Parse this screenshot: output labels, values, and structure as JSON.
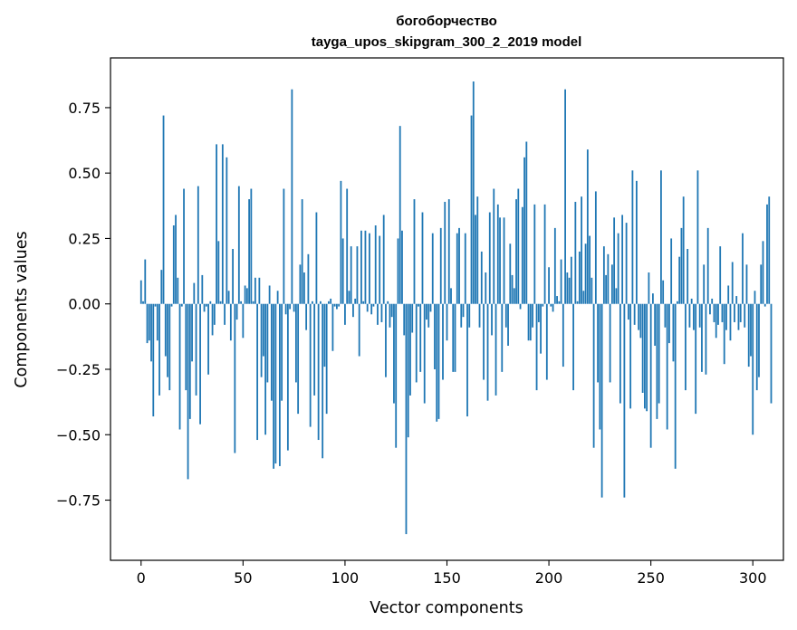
{
  "chart_data": {
    "type": "bar",
    "title_line1": "богоборчество",
    "title_line2": "tayga_upos_skipgram_300_2_2019 model",
    "xlabel": "Vector components",
    "ylabel": "Components values",
    "xlim": [
      -15,
      315
    ],
    "ylim": [
      -0.98,
      0.94
    ],
    "xticks": [
      0,
      50,
      100,
      150,
      200,
      250,
      300
    ],
    "xtick_labels": [
      "0",
      "50",
      "100",
      "150",
      "200",
      "250",
      "300"
    ],
    "yticks": [
      -0.75,
      -0.5,
      -0.25,
      0.0,
      0.25,
      0.5,
      0.75
    ],
    "ytick_labels": [
      "−0.75",
      "−0.50",
      "−0.25",
      "0.00",
      "0.25",
      "0.50",
      "0.75"
    ],
    "bar_color": "#1f77b4",
    "grid": false,
    "values": [
      0.09,
      0.01,
      0.17,
      -0.15,
      -0.14,
      -0.22,
      -0.43,
      -0.01,
      -0.14,
      -0.35,
      0.13,
      0.72,
      -0.2,
      -0.28,
      -0.33,
      -0.01,
      0.3,
      0.34,
      0.1,
      -0.48,
      -0.01,
      0.44,
      -0.33,
      -0.67,
      -0.44,
      -0.22,
      0.08,
      -0.35,
      0.45,
      -0.46,
      0.11,
      -0.03,
      -0.01,
      -0.27,
      0.01,
      -0.12,
      -0.08,
      0.61,
      0.24,
      0.01,
      0.61,
      -0.08,
      0.56,
      0.05,
      -0.14,
      0.21,
      -0.57,
      -0.06,
      0.45,
      0.01,
      -0.13,
      0.07,
      0.06,
      0.4,
      0.44,
      0.01,
      0.1,
      -0.52,
      0.1,
      -0.28,
      -0.2,
      -0.5,
      -0.3,
      0.07,
      -0.37,
      -0.63,
      -0.61,
      0.05,
      -0.62,
      -0.37,
      0.44,
      -0.04,
      -0.56,
      -0.02,
      0.82,
      -0.03,
      -0.3,
      -0.42,
      0.15,
      0.4,
      0.12,
      -0.1,
      0.19,
      -0.47,
      0.01,
      -0.35,
      0.35,
      -0.52,
      0.01,
      -0.59,
      -0.24,
      -0.42,
      0.01,
      0.02,
      -0.18,
      -0.01,
      -0.02,
      -0.01,
      0.47,
      0.25,
      -0.08,
      0.44,
      0.05,
      0.22,
      -0.05,
      0.02,
      0.22,
      -0.2,
      0.28,
      0.01,
      0.28,
      -0.03,
      0.27,
      -0.04,
      -0.01,
      0.3,
      -0.08,
      0.26,
      -0.07,
      0.34,
      -0.28,
      0.01,
      -0.09,
      -0.05,
      -0.38,
      -0.55,
      0.25,
      0.68,
      0.28,
      -0.12,
      -0.88,
      -0.51,
      -0.35,
      -0.11,
      0.4,
      -0.3,
      -0.01,
      -0.26,
      0.35,
      -0.38,
      -0.06,
      -0.09,
      -0.03,
      0.27,
      -0.25,
      -0.45,
      -0.44,
      0.29,
      -0.29,
      0.39,
      -0.14,
      0.4,
      0.06,
      -0.26,
      -0.26,
      0.27,
      0.29,
      -0.09,
      -0.05,
      0.27,
      -0.43,
      -0.09,
      0.72,
      0.85,
      0.34,
      0.41,
      -0.09,
      0.2,
      -0.29,
      0.12,
      -0.37,
      0.35,
      -0.12,
      0.44,
      -0.35,
      0.38,
      0.33,
      -0.26,
      0.33,
      -0.09,
      -0.16,
      0.23,
      0.11,
      0.06,
      0.4,
      0.44,
      -0.02,
      0.37,
      0.56,
      0.62,
      -0.14,
      -0.14,
      -0.09,
      0.38,
      -0.33,
      -0.07,
      -0.19,
      -0.01,
      0.38,
      -0.29,
      0.14,
      -0.01,
      -0.03,
      0.29,
      0.03,
      0.01,
      0.17,
      -0.24,
      0.82,
      0.12,
      0.1,
      0.18,
      -0.33,
      0.39,
      0.01,
      0.2,
      0.41,
      0.05,
      0.23,
      0.59,
      0.26,
      0.1,
      -0.55,
      0.43,
      -0.3,
      -0.48,
      -0.74,
      0.22,
      0.11,
      0.19,
      -0.3,
      0.15,
      0.33,
      0.06,
      0.27,
      -0.38,
      0.34,
      -0.74,
      0.31,
      -0.06,
      -0.4,
      0.51,
      -0.08,
      0.47,
      -0.1,
      -0.13,
      -0.34,
      -0.4,
      -0.41,
      0.12,
      -0.55,
      0.04,
      -0.16,
      -0.44,
      -0.38,
      0.51,
      0.09,
      -0.09,
      -0.48,
      -0.15,
      0.25,
      -0.22,
      -0.63,
      0.01,
      0.18,
      0.29,
      0.41,
      -0.33,
      0.21,
      -0.09,
      0.02,
      -0.1,
      -0.42,
      0.51,
      -0.09,
      -0.26,
      0.15,
      -0.27,
      0.29,
      -0.04,
      0.02,
      -0.07,
      -0.13,
      -0.08,
      0.22,
      -0.07,
      -0.23,
      -0.1,
      0.07,
      -0.14,
      0.16,
      -0.07,
      0.03,
      -0.1,
      -0.07,
      0.27,
      -0.09,
      0.15,
      -0.24,
      -0.2,
      -0.5,
      0.05,
      -0.33,
      -0.28,
      0.15,
      0.24,
      -0.01,
      0.38,
      0.41,
      -0.38
    ]
  }
}
